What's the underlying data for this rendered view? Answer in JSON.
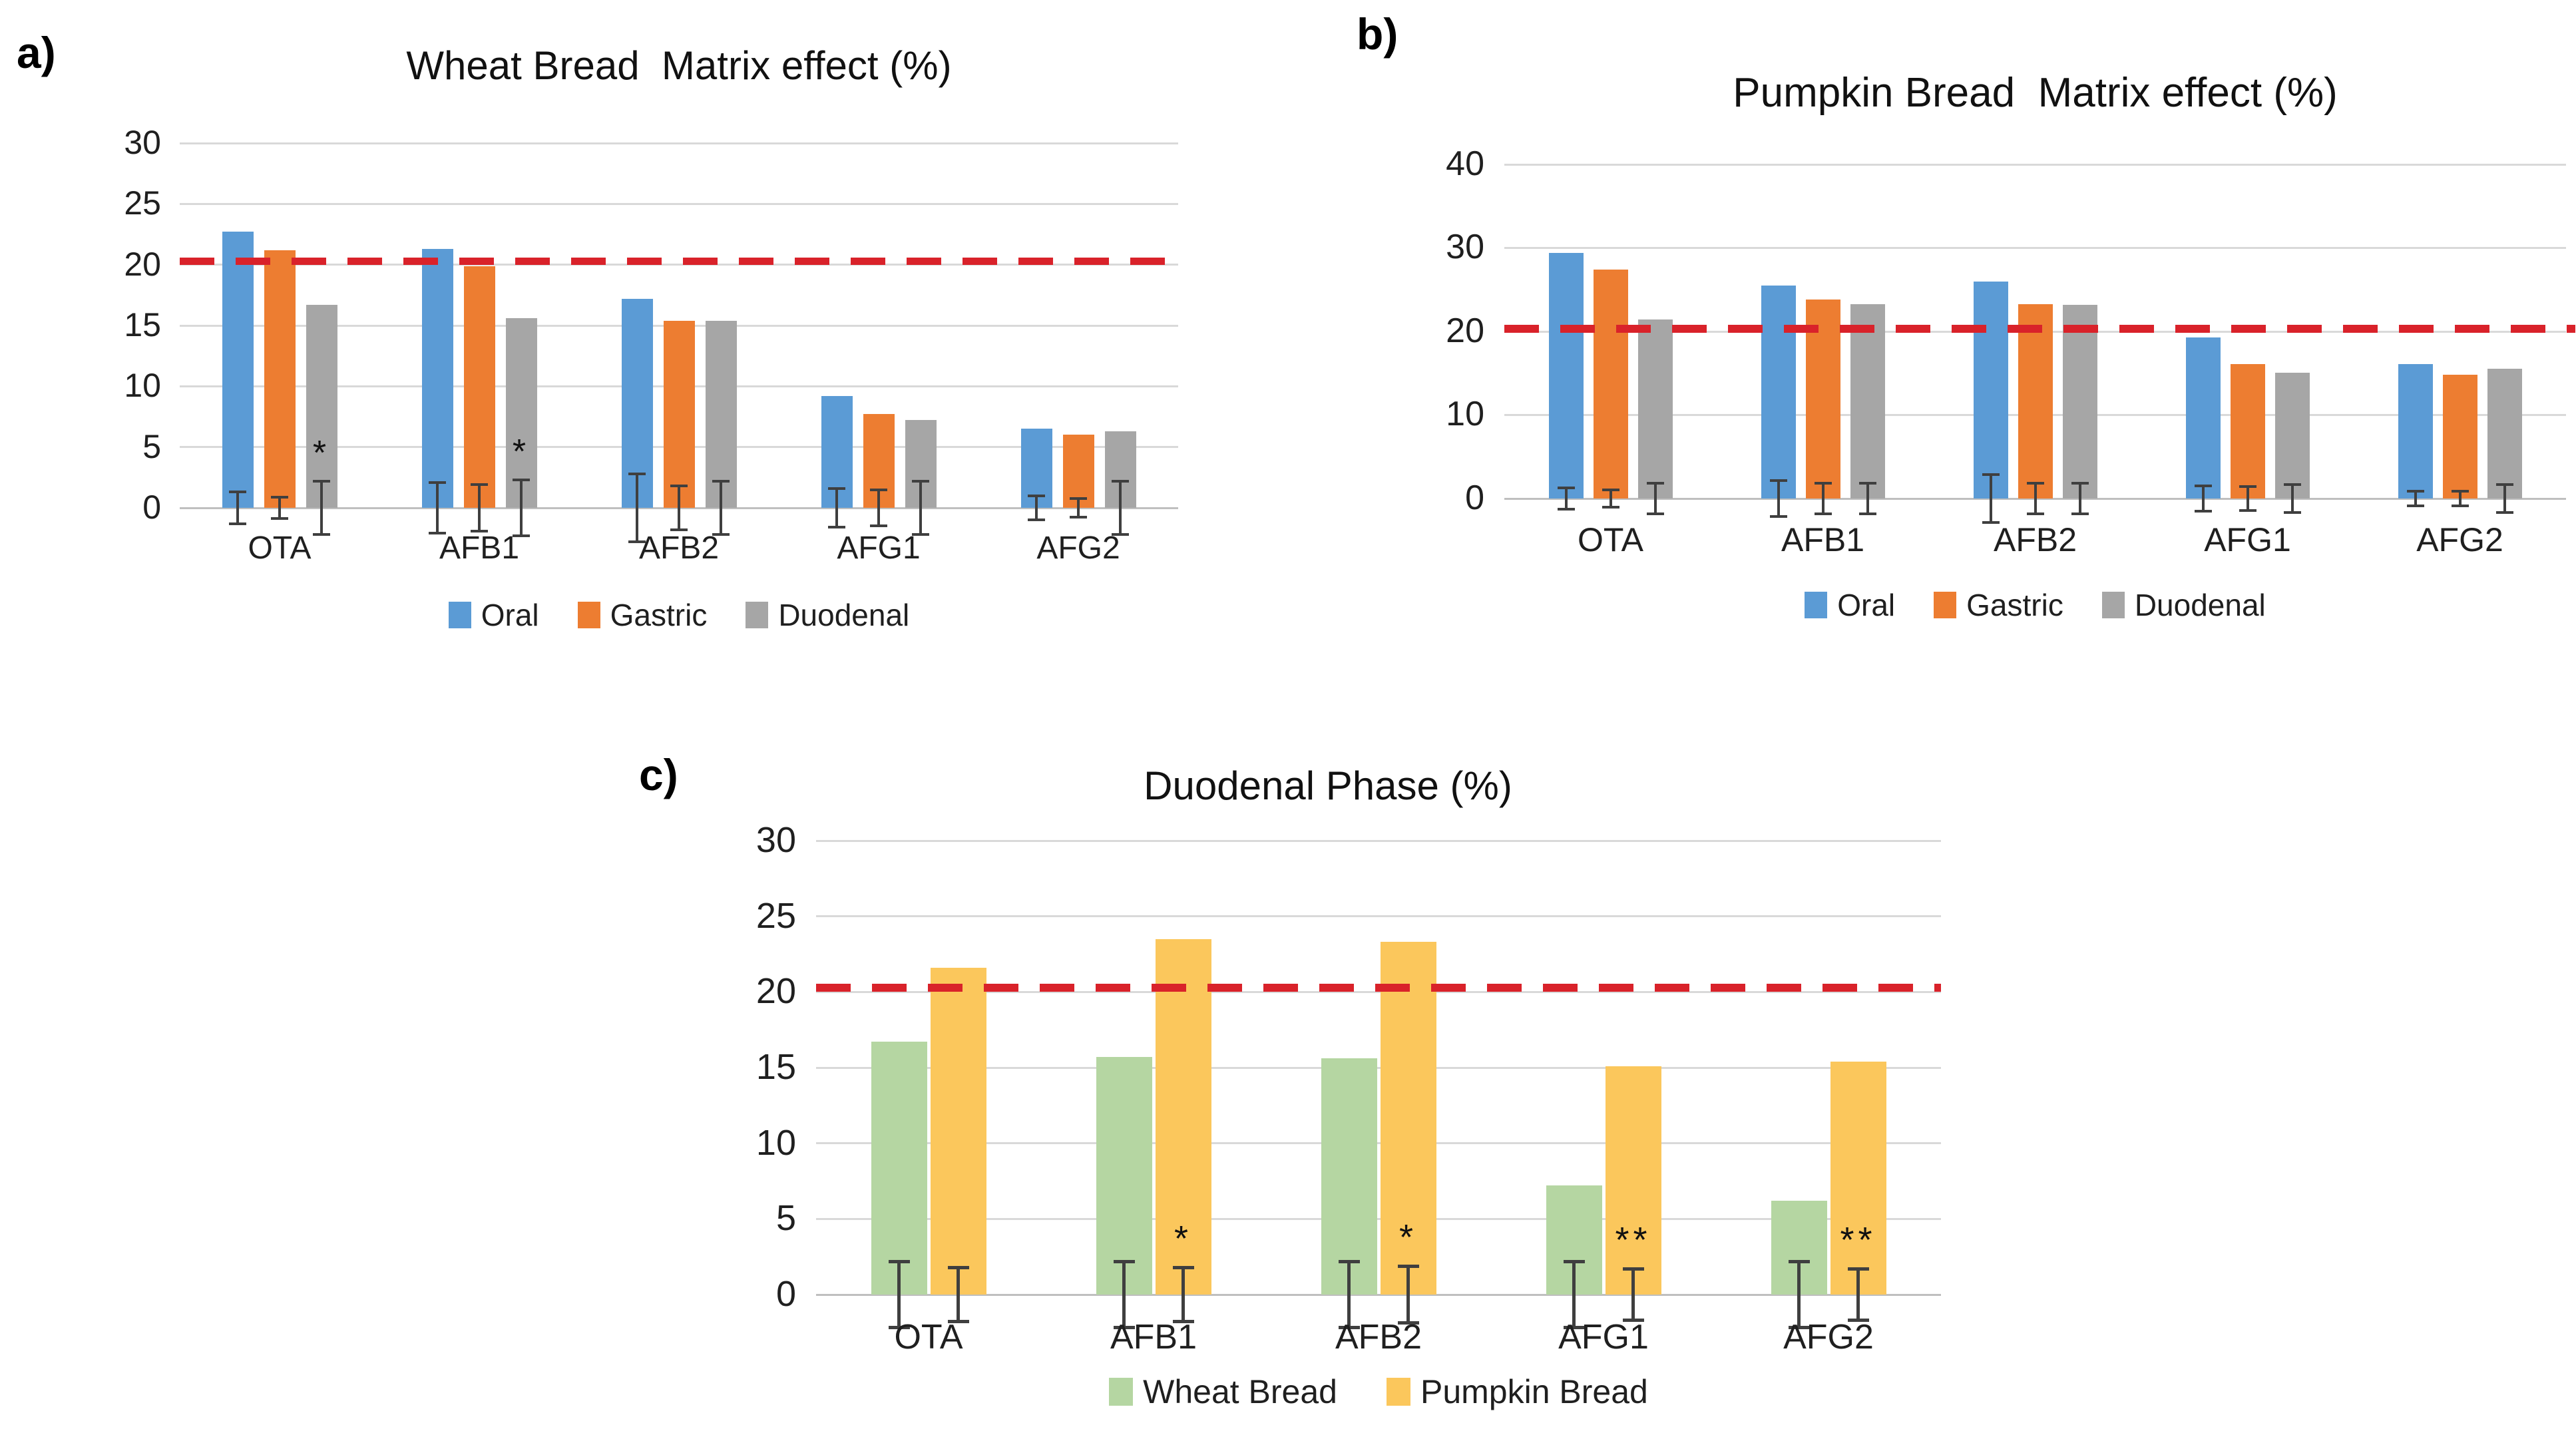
{
  "chart_data": [
    {
      "id": "a",
      "type": "bar",
      "panel_label": "a)",
      "title": "Wheat Bread  Matrix effect (%)",
      "categories": [
        "OTA",
        "AFB1",
        "AFB2",
        "AFG1",
        "AFG2"
      ],
      "series": [
        {
          "name": "Oral",
          "color": "#5B9BD5",
          "values": [
            22.7,
            21.3,
            17.2,
            9.2,
            6.5
          ],
          "errors": [
            1.4,
            2.2,
            2.9,
            1.7,
            1.1
          ]
        },
        {
          "name": "Gastric",
          "color": "#ED7D31",
          "values": [
            21.2,
            19.9,
            15.4,
            7.7,
            6.0
          ],
          "errors": [
            1.0,
            2.0,
            1.9,
            1.6,
            0.9
          ]
        },
        {
          "name": "Duodenal",
          "color": "#A6A6A6",
          "values": [
            16.7,
            15.6,
            15.4,
            7.2,
            6.3
          ],
          "errors": [
            2.3,
            2.4,
            2.3,
            2.3,
            2.3
          ]
        }
      ],
      "annotations": [
        {
          "category": "OTA",
          "series": "Duodenal",
          "text": "*"
        },
        {
          "category": "AFB1",
          "series": "Duodenal",
          "text": "*"
        }
      ],
      "reference_line": {
        "value": 20.3,
        "color": "#D9222A",
        "style": "dashed"
      },
      "y_axis": {
        "min": 0,
        "max": 30,
        "ticks": [
          0,
          5,
          10,
          15,
          20,
          25,
          30
        ]
      },
      "xlabel": "",
      "ylabel": "",
      "grid": true,
      "legend_position": "bottom"
    },
    {
      "id": "b",
      "type": "bar",
      "panel_label": "b)",
      "title": "Pumpkin Bread  Matrix effect (%)",
      "categories": [
        "OTA",
        "AFB1",
        "AFB2",
        "AFG1",
        "AFG2"
      ],
      "series": [
        {
          "name": "Oral",
          "color": "#5B9BD5",
          "values": [
            29.4,
            25.5,
            26.0,
            19.3,
            16.1
          ],
          "errors": [
            1.4,
            2.3,
            3.0,
            1.7,
            1.0
          ]
        },
        {
          "name": "Gastric",
          "color": "#ED7D31",
          "values": [
            27.4,
            23.8,
            23.3,
            16.1,
            14.8
          ],
          "errors": [
            1.2,
            2.0,
            2.0,
            1.6,
            1.0
          ]
        },
        {
          "name": "Duodenal",
          "color": "#A6A6A6",
          "values": [
            21.4,
            23.3,
            23.2,
            15.1,
            15.5
          ],
          "errors": [
            2.0,
            2.0,
            2.0,
            1.8,
            1.8
          ]
        }
      ],
      "annotations": [],
      "reference_line": {
        "value": 20.3,
        "color": "#D9222A",
        "style": "dashed"
      },
      "y_axis": {
        "min": 0,
        "max": 40,
        "ticks": [
          0,
          10,
          20,
          30,
          40
        ]
      },
      "xlabel": "",
      "ylabel": "",
      "grid": true,
      "legend_position": "bottom"
    },
    {
      "id": "c",
      "type": "bar",
      "panel_label": "c)",
      "title": "Duodenal Phase (%)",
      "categories": [
        "OTA",
        "AFB1",
        "AFB2",
        "AFG1",
        "AFG2"
      ],
      "series": [
        {
          "name": "Wheat Bread",
          "color": "#B5D6A2",
          "values": [
            16.7,
            15.7,
            15.6,
            7.2,
            6.2
          ],
          "errors": [
            2.3,
            2.3,
            2.3,
            2.3,
            2.3
          ]
        },
        {
          "name": "Pumpkin Bread",
          "color": "#FBC75C",
          "values": [
            21.6,
            23.5,
            23.3,
            15.1,
            15.4
          ],
          "errors": [
            1.9,
            1.9,
            2.0,
            1.8,
            1.8
          ]
        }
      ],
      "annotations": [
        {
          "category": "AFB1",
          "series": "Pumpkin Bread",
          "text": "*"
        },
        {
          "category": "AFB2",
          "series": "Pumpkin Bread",
          "text": "*"
        },
        {
          "category": "AFG1",
          "series": "Pumpkin Bread",
          "text": "**"
        },
        {
          "category": "AFG2",
          "series": "Pumpkin Bread",
          "text": "**"
        }
      ],
      "reference_line": {
        "value": 20.3,
        "color": "#D9222A",
        "style": "dashed"
      },
      "y_axis": {
        "min": 0,
        "max": 30,
        "ticks": [
          0,
          5,
          10,
          15,
          20,
          25,
          30
        ]
      },
      "xlabel": "",
      "ylabel": "",
      "grid": true,
      "legend_position": "bottom"
    }
  ]
}
